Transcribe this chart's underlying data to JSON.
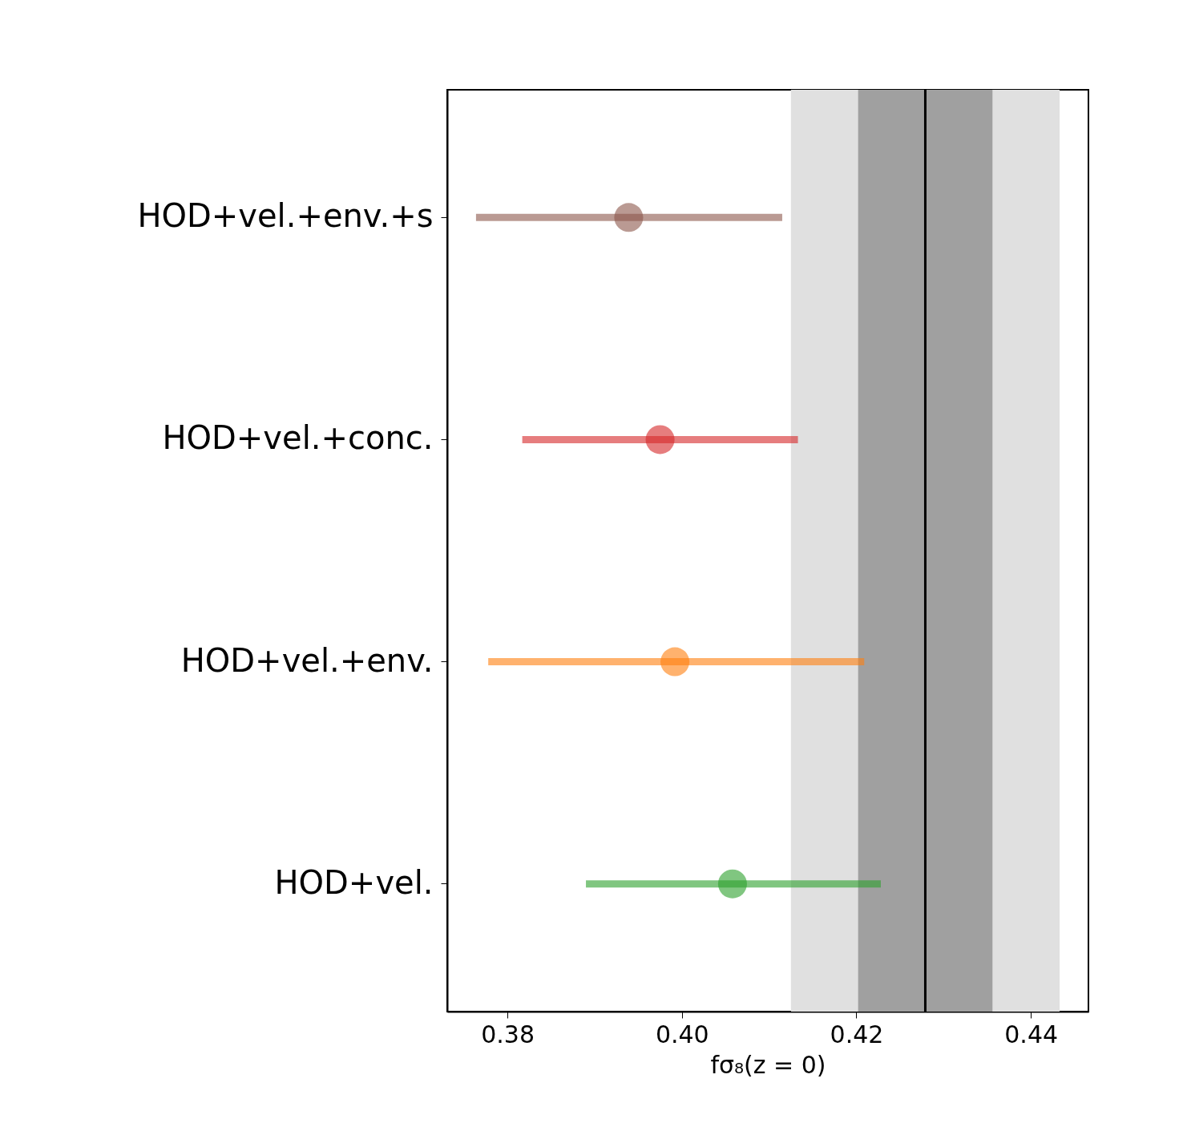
{
  "chart_data": {
    "type": "scatter",
    "orientation": "horizontal",
    "categories": [
      "HOD+vel.+env.+s",
      "HOD+vel.+conc.",
      "HOD+vel.+env.",
      "HOD+vel."
    ],
    "values": [
      0.3939,
      0.3975,
      0.3992,
      0.4058
    ],
    "colors": [
      "#8c564b",
      "#d62728",
      "#ff7f0e",
      "#2ca02c"
    ],
    "errors": [
      [
        0.3764,
        0.4115
      ],
      [
        0.3817,
        0.4133
      ],
      [
        0.3778,
        0.4209
      ],
      [
        0.389,
        0.4228
      ]
    ],
    "xlabel": "fσ₈(z = 0)",
    "xlim": [
      0.3731,
      0.4466
    ],
    "xticks": [
      0.38,
      {
        "value": 0.4,
        "label": "0.40"
      },
      0.42,
      0.44
    ],
    "bands": [
      {
        "axis": "x",
        "from": 0.4125,
        "to": 0.4433,
        "color": "#e0e0e0"
      },
      {
        "axis": "x",
        "from": 0.4202,
        "to": 0.4356,
        "color": "#a0a0a0"
      }
    ],
    "ref_lines": [
      {
        "axis": "x",
        "value": 0.4279,
        "color": "#000000"
      }
    ],
    "grid": false,
    "marker": "circle"
  }
}
